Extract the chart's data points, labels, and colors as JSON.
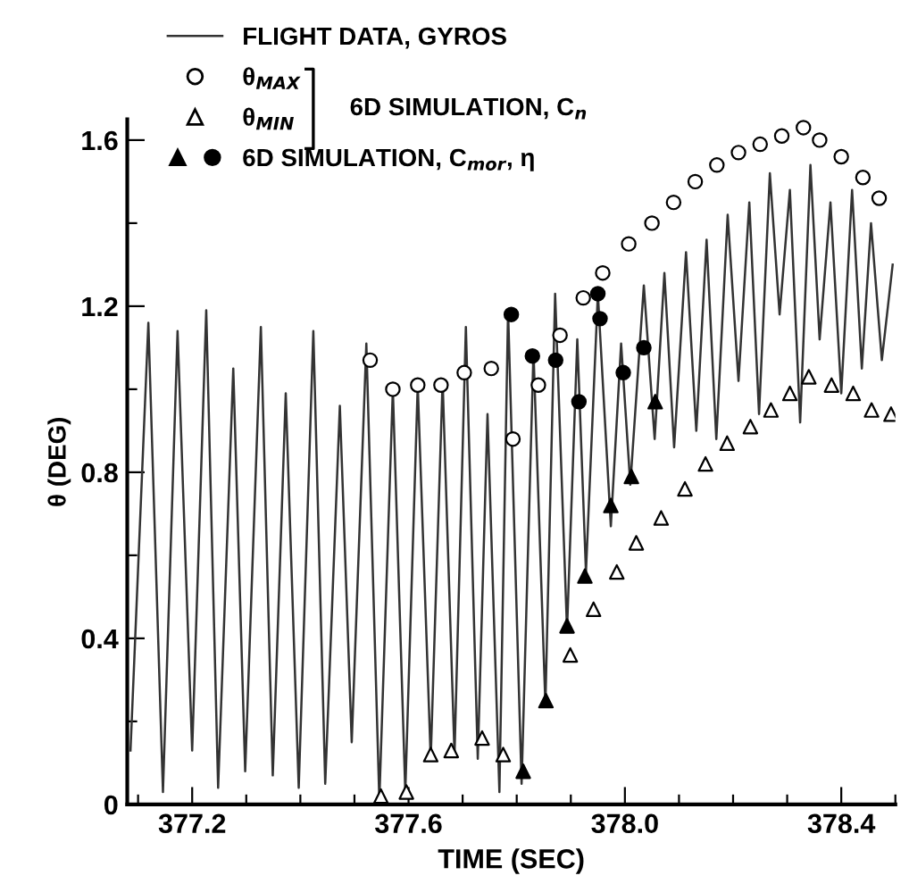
{
  "chart_data": {
    "type": "line",
    "xlabel": "TIME (SEC)",
    "ylabel": "θ (DEG)",
    "xlim": [
      377.08,
      378.5
    ],
    "ylim": [
      0,
      1.65
    ],
    "xticks": [
      {
        "value": 377.1,
        "label": null
      },
      377.2,
      {
        "value": 377.3,
        "label": null
      },
      {
        "value": 377.4,
        "label": null
      },
      {
        "value": 377.5,
        "label": null
      },
      377.6,
      {
        "value": 377.7,
        "label": null
      },
      {
        "value": 377.8,
        "label": null
      },
      {
        "value": 377.9,
        "label": null
      },
      {
        "value": 378.0,
        "label": "378.0"
      },
      {
        "value": 378.1,
        "label": null
      },
      {
        "value": 378.2,
        "label": null
      },
      {
        "value": 378.3,
        "label": null
      },
      378.4,
      {
        "value": 378.5,
        "label": null
      }
    ],
    "yticks": [
      0,
      {
        "value": 0.2,
        "label": null
      },
      0.4,
      {
        "value": 0.6,
        "label": null
      },
      0.8,
      {
        "value": 1.0,
        "label": null
      },
      1.2,
      {
        "value": 1.4,
        "label": null
      },
      1.6
    ],
    "grid": false,
    "legend": "top left",
    "annotations": [
      "6D SIMULATION, C$_{n}$"
    ],
    "series": [
      {
        "name": "FLIGHT DATA, GYROS",
        "color": "#333333",
        "marker": "none",
        "line_style": "solid",
        "x": [
          377.086,
          377.119,
          377.146,
          377.173,
          377.2,
          377.226,
          377.248,
          377.276,
          377.298,
          377.327,
          377.349,
          377.373,
          377.397,
          377.424,
          377.446,
          377.473,
          377.495,
          377.522,
          377.546,
          377.571,
          377.594,
          377.617,
          377.641,
          377.663,
          377.685,
          377.706,
          377.728,
          377.746,
          377.768,
          377.784,
          377.809,
          377.831,
          377.853,
          377.871,
          377.893,
          377.912,
          377.928,
          377.95,
          377.974,
          377.993,
          378.01,
          378.035,
          378.055,
          378.073,
          378.091,
          378.113,
          378.132,
          378.151,
          378.169,
          378.19,
          378.21,
          378.23,
          378.248,
          378.268,
          378.286,
          378.305,
          378.324,
          378.343,
          378.36,
          378.38,
          378.4,
          378.42,
          378.438,
          378.455,
          378.475,
          378.495
        ],
        "values": [
          0.13,
          1.16,
          0.03,
          1.14,
          0.13,
          1.19,
          0.04,
          1.05,
          0.08,
          1.15,
          0.07,
          0.99,
          0.04,
          1.14,
          0.05,
          0.96,
          0.15,
          1.11,
          0.01,
          1.0,
          0.03,
          1.01,
          0.11,
          1.02,
          0.12,
          1.15,
          0.11,
          0.94,
          0.03,
          1.19,
          0.05,
          1.09,
          0.24,
          1.23,
          0.42,
          1.12,
          0.56,
          1.23,
          0.67,
          1.11,
          0.77,
          1.25,
          0.88,
          1.28,
          0.86,
          1.33,
          0.9,
          1.36,
          0.88,
          1.42,
          1.02,
          1.45,
          0.94,
          1.52,
          1.18,
          1.48,
          0.92,
          1.54,
          1.12,
          1.45,
          0.99,
          1.48,
          1.05,
          1.4,
          1.07,
          1.3
        ]
      },
      {
        "name": "θ$_{MAX}$",
        "type": "scatter",
        "color": "#ffffff",
        "marker": "circle",
        "x": [
          377.529,
          377.571,
          377.617,
          377.66,
          377.703,
          377.753,
          377.793,
          377.84,
          377.88,
          377.923,
          377.959,
          378.007,
          378.05,
          378.09,
          378.13,
          378.17,
          378.21,
          378.25,
          378.29,
          378.33,
          378.36,
          378.4,
          378.44,
          378.47
        ],
        "values": [
          1.07,
          1.0,
          1.01,
          1.01,
          1.04,
          1.05,
          0.88,
          1.01,
          1.13,
          1.22,
          1.28,
          1.35,
          1.4,
          1.45,
          1.5,
          1.54,
          1.57,
          1.59,
          1.61,
          1.63,
          1.6,
          1.56,
          1.51,
          1.46
        ]
      },
      {
        "name": "θ$_{MIN}$",
        "type": "scatter",
        "color": "#ffffff",
        "marker": "triangle",
        "x": [
          377.549,
          377.596,
          377.641,
          377.679,
          377.736,
          377.775,
          377.899,
          377.942,
          377.985,
          378.021,
          378.067,
          378.111,
          378.149,
          378.189,
          378.232,
          378.27,
          378.305,
          378.34,
          378.382,
          378.422,
          378.456,
          378.492
        ],
        "values": [
          0.02,
          0.03,
          0.12,
          0.13,
          0.16,
          0.12,
          0.36,
          0.47,
          0.56,
          0.63,
          0.69,
          0.76,
          0.82,
          0.87,
          0.91,
          0.95,
          0.99,
          1.03,
          1.01,
          0.99,
          0.95,
          0.94
        ]
      },
      {
        "name": "6D SIMULATION, C$_{mor}$, η",
        "type": "scatter",
        "color": "#000000",
        "marker": "circle",
        "x": [
          377.79,
          377.829,
          377.872,
          377.915,
          377.95,
          377.954,
          377.997,
          378.035
        ],
        "values": [
          1.18,
          1.08,
          1.07,
          0.97,
          1.23,
          1.17,
          1.04,
          1.1
        ]
      },
      {
        "type": "scatter",
        "color": "#000000",
        "marker": "triangle",
        "x": [
          377.812,
          377.854,
          377.893,
          377.926,
          377.974,
          378.012,
          378.056
        ],
        "values": [
          0.08,
          0.25,
          0.43,
          0.55,
          0.72,
          0.79,
          0.97
        ]
      }
    ]
  }
}
